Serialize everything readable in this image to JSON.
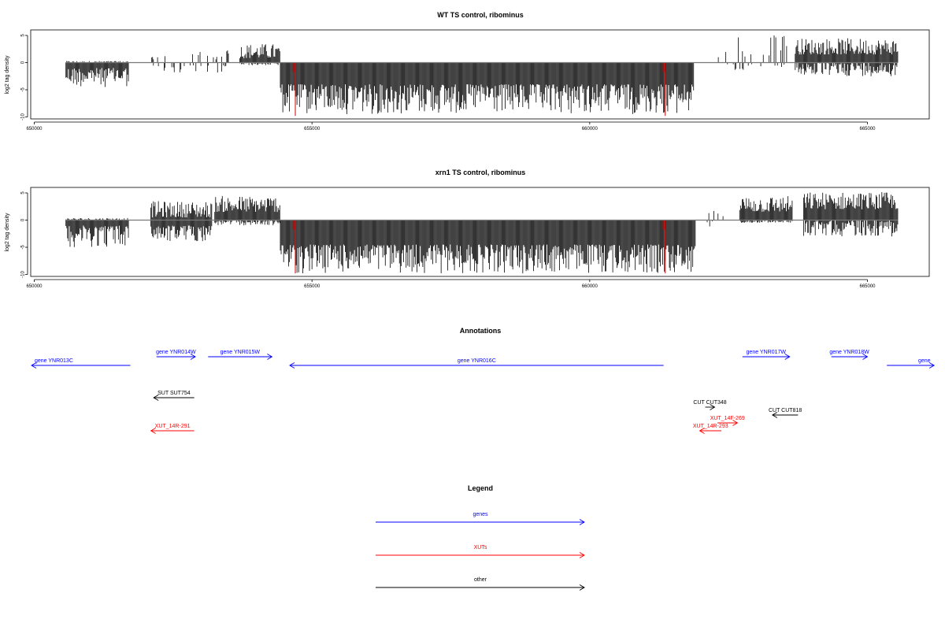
{
  "chart_data": [
    {
      "type": "bar",
      "title": "WT TS control, ribominus",
      "ylabel": "log2 tag density",
      "xlabel": "",
      "xlim": [
        650000,
        666100
      ],
      "ylim": [
        -10,
        6
      ],
      "x_ticks": [
        650000,
        655000,
        660000,
        665000
      ],
      "y_ticks": [
        5,
        0,
        -5,
        -10
      ],
      "bar_width_bp": 15,
      "series": [
        {
          "values_note": "",
          "segments": [
            {
              "start": 650570,
              "end": 651700,
              "upper": [
                0,
                0.3
              ],
              "lower": [
                -4.5,
                -1.0
              ]
            },
            {
              "start": 652100,
              "end": 653500,
              "upper": [
                0.5,
                2.5
              ],
              "lower": [
                -2.0,
                -0.5
              ],
              "sparse": true
            },
            {
              "start": 653700,
              "end": 654420,
              "upper": [
                0.8,
                3.5
              ],
              "lower": [
                -0.5,
                0
              ]
            },
            {
              "start": 654430,
              "end": 661880,
              "upper": [
                0,
                0
              ],
              "lower": [
                -9.5,
                -4.0
              ]
            },
            {
              "start": 662300,
              "end": 663600,
              "upper": [
                1.0,
                5.2
              ],
              "lower": [
                -1.5,
                0
              ],
              "sparse": true
            },
            {
              "start": 663700,
              "end": 665550,
              "upper": [
                1.5,
                4.5
              ],
              "lower": [
                -2.5,
                0
              ]
            }
          ]
        }
      ],
      "highlights": [
        {
          "x": 654700,
          "value": -9.8,
          "color": "#cc0000"
        },
        {
          "x": 661360,
          "value": -9.8,
          "color": "#cc0000"
        }
      ]
    },
    {
      "type": "bar",
      "title": "xrn1 TS control, ribominus",
      "ylabel": "log2 tag density",
      "xlabel": "",
      "xlim": [
        650000,
        666100
      ],
      "ylim": [
        -10,
        6
      ],
      "x_ticks": [
        650000,
        655000,
        660000,
        665000
      ],
      "y_ticks": [
        5,
        0,
        -5,
        -10
      ],
      "bar_width_bp": 15,
      "series": [
        {
          "segments": [
            {
              "start": 650570,
              "end": 651700,
              "upper": [
                0,
                0.4
              ],
              "lower": [
                -5.0,
                -1.0
              ]
            },
            {
              "start": 652100,
              "end": 653200,
              "upper": [
                0.5,
                3.5
              ],
              "lower": [
                -4.0,
                -1.0
              ]
            },
            {
              "start": 653250,
              "end": 654420,
              "upper": [
                1.5,
                4.5
              ],
              "lower": [
                -1.0,
                0
              ]
            },
            {
              "start": 654430,
              "end": 661900,
              "upper": [
                0,
                0
              ],
              "lower": [
                -9.8,
                -4.5
              ]
            },
            {
              "start": 662100,
              "end": 662400,
              "upper": [
                0.5,
                2.0
              ],
              "lower": [
                -2.0,
                0
              ],
              "sparse": true
            },
            {
              "start": 662700,
              "end": 663650,
              "upper": [
                1.5,
                4.5
              ],
              "lower": [
                -0.5,
                0
              ]
            },
            {
              "start": 663850,
              "end": 665550,
              "upper": [
                2.0,
                5.2
              ],
              "lower": [
                -3.0,
                0
              ]
            }
          ]
        }
      ],
      "highlights": [
        {
          "x": 654700,
          "value": -9.8,
          "color": "#cc0000"
        },
        {
          "x": 661360,
          "value": -9.8,
          "color": "#cc0000"
        }
      ]
    }
  ],
  "annotations": {
    "title": "Annotations",
    "colors": {
      "gene": "#0000ff",
      "xut": "#ff0000",
      "other": "#000000"
    },
    "features": [
      {
        "label": "gene YNR013C",
        "start": 649950,
        "end": 651730,
        "strand": "-",
        "kind": "gene",
        "row": 1
      },
      {
        "label": "gene YNR014W",
        "start": 652200,
        "end": 652900,
        "strand": "+",
        "kind": "gene",
        "row": 0
      },
      {
        "label": "gene YNR015W",
        "start": 653130,
        "end": 654280,
        "strand": "+",
        "kind": "gene",
        "row": 0
      },
      {
        "label": "gene YNR016C",
        "start": 654600,
        "end": 661330,
        "strand": "-",
        "kind": "gene",
        "row": 1
      },
      {
        "label": "gene YNR017W",
        "start": 662750,
        "end": 663600,
        "strand": "+",
        "kind": "gene",
        "row": 0
      },
      {
        "label": "gene YNR018W",
        "start": 664350,
        "end": 665000,
        "strand": "+",
        "kind": "gene",
        "row": 0
      },
      {
        "label": "gene",
        "start": 665350,
        "end": 666200,
        "strand": "+",
        "kind": "gene",
        "row": 1
      },
      {
        "label": "SUT SUT754",
        "start": 652150,
        "end": 652880,
        "strand": "-",
        "kind": "other",
        "row": 2
      },
      {
        "label": "CUT CUT348",
        "start": 662080,
        "end": 662250,
        "strand": "+",
        "kind": "other",
        "row": 3
      },
      {
        "label": "CUT CUT818",
        "start": 663290,
        "end": 663750,
        "strand": "-",
        "kind": "other",
        "row": 4
      },
      {
        "label": "XUT_14F-269",
        "start": 662300,
        "end": 662660,
        "strand": "+",
        "kind": "xut",
        "row": 5
      },
      {
        "label": "XUT_14R-291",
        "start": 652100,
        "end": 652880,
        "strand": "-",
        "kind": "xut",
        "row": 6
      },
      {
        "label": "XUT_14R-293",
        "start": 661980,
        "end": 662370,
        "strand": "-",
        "kind": "xut",
        "row": 6
      }
    ]
  },
  "legend": {
    "title": "Legend",
    "items": [
      {
        "label": "genes",
        "color": "#0000ff"
      },
      {
        "label": "XUTs",
        "color": "#ff0000"
      },
      {
        "label": "other",
        "color": "#000000"
      }
    ]
  }
}
